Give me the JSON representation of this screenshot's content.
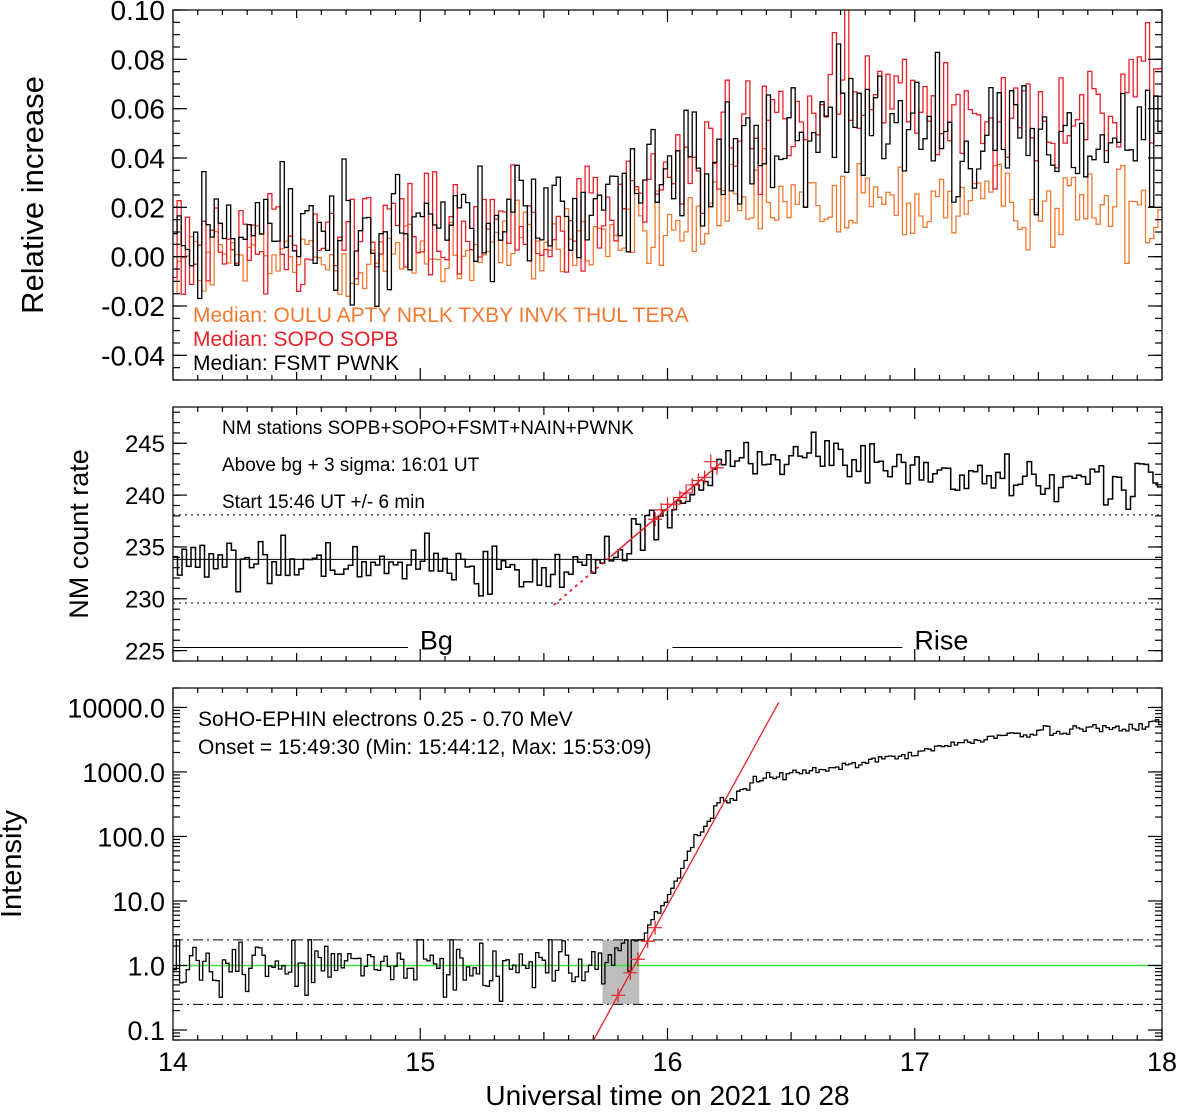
{
  "colors": {
    "black": "#000000",
    "red": "#e8202a",
    "orange": "#f07a32",
    "green": "#39e639",
    "gray": "#bdbdbd"
  },
  "chart_data": [
    {
      "type": "line",
      "panel": "top",
      "ylabel": "Relative increase",
      "xlim": [
        14,
        18
      ],
      "ylim": [
        -0.05,
        0.1
      ],
      "yticks": [
        "0.10",
        "0.08",
        "0.06",
        "0.04",
        "0.02",
        "0.00",
        "-0.02",
        "-0.04"
      ],
      "legend_location": "bottom-left",
      "legend": [
        {
          "text": "Median: OULU APTY NRLK TXBY INVK THUL TERA",
          "color": "#f07a32"
        },
        {
          "text": "Median: SOPO SOPB",
          "color": "#e8202a"
        },
        {
          "text": "Median: FSMT PWNK",
          "color": "#000000"
        }
      ],
      "series": [
        {
          "name": "Median: OULU APTY NRLK TXBY INVK THUL TERA",
          "color": "#f07a32",
          "x": [
            14.0,
            15.0,
            15.5,
            16.0,
            16.4,
            17.0,
            18.0
          ],
          "values": [
            -0.003,
            0.0,
            0.005,
            0.01,
            0.02,
            0.022,
            0.02
          ]
        },
        {
          "name": "Median: SOPO SOPB",
          "color": "#e8202a",
          "x": [
            14.0,
            15.0,
            15.6,
            16.0,
            16.4,
            16.8,
            17.5,
            18.0
          ],
          "values": [
            0.01,
            0.01,
            0.015,
            0.03,
            0.055,
            0.065,
            0.06,
            0.06
          ]
        },
        {
          "name": "Median: FSMT PWNK",
          "color": "#000000",
          "x": [
            14.0,
            15.0,
            15.6,
            16.0,
            16.4,
            16.8,
            17.5,
            18.0
          ],
          "values": [
            0.01,
            0.012,
            0.018,
            0.03,
            0.05,
            0.06,
            0.045,
            0.045
          ]
        }
      ]
    },
    {
      "type": "line",
      "panel": "middle",
      "ylabel": "NM count rate",
      "xlim": [
        14,
        18
      ],
      "ylim": [
        224,
        248.5
      ],
      "yticks": [
        "245",
        "240",
        "235",
        "230",
        "225"
      ],
      "annotations": [
        "NM stations SOPB+SOPO+FSMT+NAIN+PWNK",
        "Above bg + 3 sigma: 16:01 UT",
        "Start 15:46 UT +/- 6 min"
      ],
      "background": 233.8,
      "sigma_upper": 238.1,
      "sigma_lower": 229.6,
      "segments": [
        {
          "label": "Bg",
          "x0": 14.0,
          "x1": 14.95
        },
        {
          "label": "Rise",
          "x0": 16.02,
          "x1": 16.95
        }
      ],
      "fit": {
        "x0": 15.54,
        "y0": 229.4,
        "x1": 16.22,
        "y1": 243.2,
        "solid_from": 15.77
      },
      "series": [
        {
          "name": "NM count rate",
          "color": "#000000",
          "x": [
            14.0,
            14.5,
            15.0,
            15.5,
            15.7,
            15.9,
            16.1,
            16.3,
            16.5,
            17.0,
            17.5,
            18.0
          ],
          "values": [
            233.8,
            233.5,
            233.6,
            232.0,
            234.0,
            237.0,
            240.0,
            243.5,
            244.0,
            242.5,
            241.0,
            241.8
          ]
        }
      ]
    },
    {
      "type": "line",
      "panel": "bottom",
      "ylabel": "Intensity",
      "xlabel": "Universal time on 2021 10 28",
      "xlim": [
        14,
        18
      ],
      "xticks": [
        "14",
        "15",
        "16",
        "17",
        "18"
      ],
      "yscale": "log",
      "ylim": [
        0.07,
        20000
      ],
      "yticks": [
        "10000.0",
        "1000.0",
        "100.0",
        "10.0",
        "1.0",
        "0.1"
      ],
      "annotations": [
        "SoHO-EPHIN electrons 0.25 - 0.70 MeV",
        "Onset = 15:49:30 (Min: 15:44:12, Max: 15:53:09)"
      ],
      "background": 1.0,
      "upper_level": 2.5,
      "lower_level": 0.25,
      "onset_window": [
        15.737,
        15.886
      ],
      "fit": {
        "x0": 15.68,
        "y0": 0.05,
        "x1": 16.45,
        "y1": 12000
      },
      "series": [
        {
          "name": "SoHO-EPHIN electrons 0.25 - 0.70 MeV",
          "color": "#000000",
          "x": [
            14.0,
            15.0,
            15.7,
            15.9,
            16.0,
            16.1,
            16.2,
            16.3,
            16.35,
            16.5,
            16.7,
            17.0,
            17.3,
            17.6,
            18.0
          ],
          "values": [
            1.0,
            1.0,
            1.0,
            3.0,
            12.0,
            80.0,
            300.0,
            500.0,
            800.0,
            900.0,
            1200.0,
            2000.0,
            3500.0,
            4500.0,
            5500.0
          ]
        }
      ]
    }
  ]
}
